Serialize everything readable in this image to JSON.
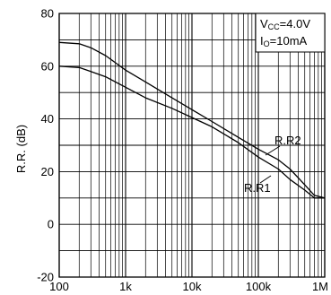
{
  "chart_data": {
    "type": "line",
    "ylabel": "R.R. (dB)",
    "xlabel": "",
    "x_scale": "log",
    "xlim": [
      100,
      1000000
    ],
    "ylim": [
      -20,
      80
    ],
    "x_tick_labels": [
      "100",
      "1k",
      "10k",
      "100k",
      "1M"
    ],
    "x_tick_values": [
      100,
      1000,
      10000,
      100000,
      1000000
    ],
    "y_ticks": [
      -20,
      0,
      20,
      40,
      60,
      80
    ],
    "grid": true,
    "conditions": {
      "vcc": {
        "main": "V",
        "sub": "CC",
        "rest": "=4.0V"
      },
      "io": {
        "main": "I",
        "sub": "O",
        "rest": "=10mA"
      }
    },
    "series": [
      {
        "name": "R.R2",
        "points": [
          [
            100,
            69
          ],
          [
            200,
            68.5
          ],
          [
            300,
            67
          ],
          [
            500,
            64
          ],
          [
            1000,
            58.5
          ],
          [
            2000,
            54
          ],
          [
            5000,
            48
          ],
          [
            10000,
            43.5
          ],
          [
            20000,
            39
          ],
          [
            50000,
            33
          ],
          [
            100000,
            28.5
          ],
          [
            200000,
            24.5
          ],
          [
            300000,
            21
          ],
          [
            500000,
            15
          ],
          [
            700000,
            11
          ],
          [
            1000000,
            10
          ]
        ]
      },
      {
        "name": "R.R1",
        "points": [
          [
            100,
            60
          ],
          [
            200,
            59.5
          ],
          [
            300,
            58
          ],
          [
            500,
            56
          ],
          [
            1000,
            52
          ],
          [
            2000,
            48
          ],
          [
            5000,
            44
          ],
          [
            10000,
            40.5
          ],
          [
            20000,
            37
          ],
          [
            50000,
            31
          ],
          [
            100000,
            25.5
          ],
          [
            200000,
            21
          ],
          [
            300000,
            17
          ],
          [
            500000,
            13
          ],
          [
            700000,
            10
          ],
          [
            1000000,
            10
          ]
        ]
      }
    ]
  }
}
